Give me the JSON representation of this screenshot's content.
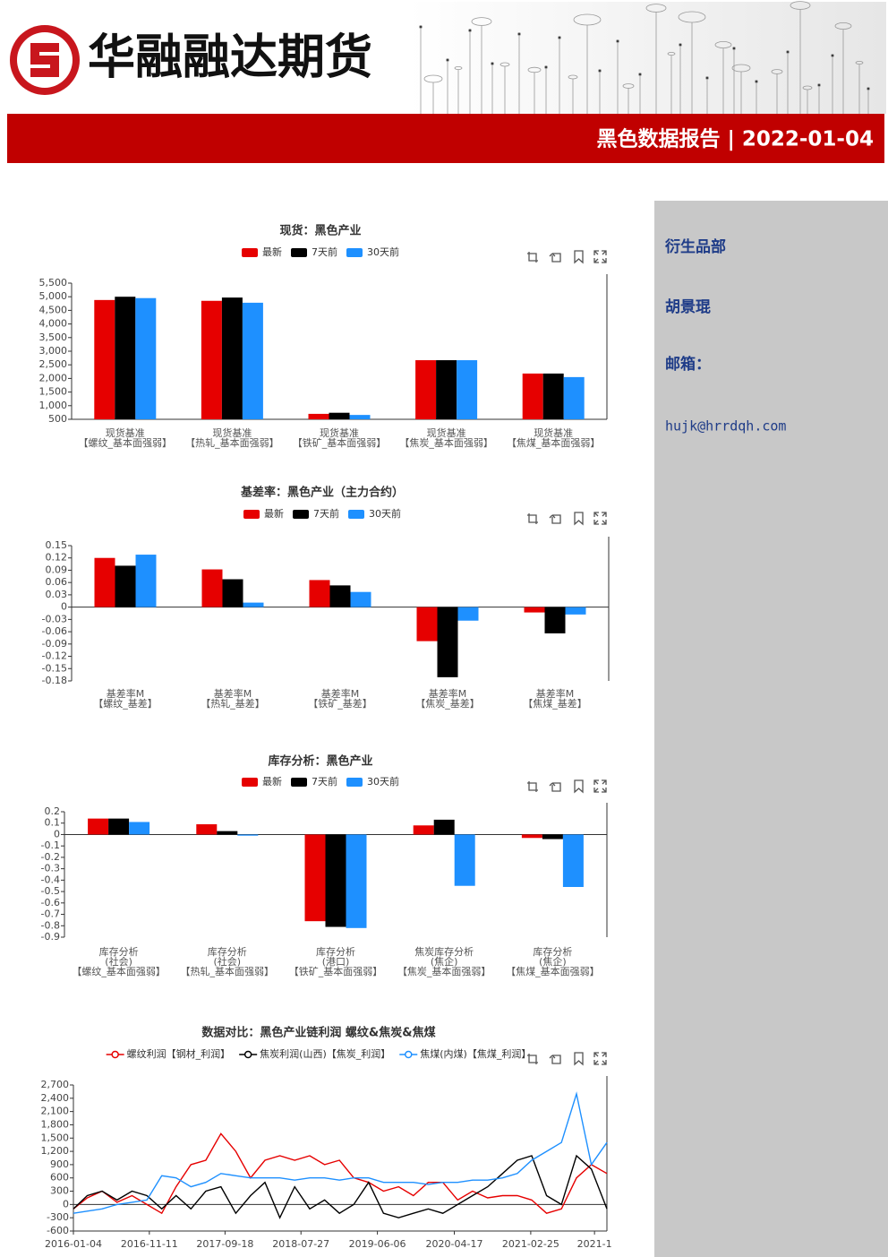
{
  "header": {
    "company": "华融融达期货",
    "report": "黑色数据报告 | 2022-01-04"
  },
  "sidebar": {
    "department": "衍生品部",
    "author": "胡景琨",
    "email_label": "邮箱：",
    "email": "hujk@hrrdqh.com"
  },
  "chart_data": [
    {
      "type": "bar",
      "title": "现货：黑色产业",
      "categories": [
        [
          "现货基准",
          "【螺纹_基本面强弱】"
        ],
        [
          "现货基准",
          "【热轧_基本面强弱】"
        ],
        [
          "现货基准",
          "【铁矿_基本面强弱】"
        ],
        [
          "现货基准",
          "【焦炭_基本面强弱】"
        ],
        [
          "现货基准",
          "【焦煤_基本面强弱】"
        ]
      ],
      "series": [
        {
          "name": "最新",
          "color": "#e60000",
          "values": [
            4880,
            4850,
            700,
            2670,
            2180
          ]
        },
        {
          "name": "7天前",
          "color": "#000000",
          "values": [
            5000,
            4970,
            740,
            2670,
            2180
          ]
        },
        {
          "name": "30天前",
          "color": "#1e90ff",
          "values": [
            4950,
            4780,
            660,
            2670,
            2050
          ]
        }
      ],
      "ylim": [
        500,
        5500
      ],
      "yticks": [
        500,
        {
          "value": 1000,
          "label": "1,000"
        },
        {
          "value": 1500,
          "label": "1,500"
        },
        {
          "value": 2000,
          "label": "2,000"
        },
        {
          "value": 2500,
          "label": "2,500"
        },
        {
          "value": 3000,
          "label": "3,000"
        },
        {
          "value": 3500,
          "label": "3,500"
        },
        {
          "value": 4000,
          "label": "4,000"
        },
        {
          "value": 4500,
          "label": "4,500"
        },
        {
          "value": 5000,
          "label": "5,000"
        },
        {
          "value": 5500,
          "label": "5,500"
        }
      ]
    },
    {
      "type": "bar",
      "title": "基差率：黑色产业（主力合约）",
      "categories": [
        [
          "基差率M",
          "【螺纹_基差】"
        ],
        [
          "基差率M",
          "【热轧_基差】"
        ],
        [
          "基差率M",
          "【铁矿_基差】"
        ],
        [
          "基差率M",
          "【焦炭_基差】"
        ],
        [
          "基差率M",
          "【焦煤_基差】"
        ]
      ],
      "series": [
        {
          "name": "最新",
          "color": "#e60000",
          "values": [
            0.12,
            0.092,
            0.066,
            -0.083,
            -0.013
          ]
        },
        {
          "name": "7天前",
          "color": "#000000",
          "values": [
            0.101,
            0.068,
            0.053,
            -0.171,
            -0.064
          ]
        },
        {
          "name": "30天前",
          "color": "#1e90ff",
          "values": [
            0.128,
            0.011,
            0.037,
            -0.033,
            -0.018
          ]
        }
      ],
      "ylim": [
        -0.18,
        0.15
      ],
      "yticks": [
        0.15,
        0.12,
        0.09,
        0.06,
        0.03,
        0,
        -0.03,
        -0.06,
        -0.09,
        -0.12,
        -0.15,
        -0.18
      ]
    },
    {
      "type": "bar",
      "title": "库存分析：黑色产业",
      "categories": [
        [
          "库存分析",
          "(社会)",
          "【螺纹_基本面强弱】"
        ],
        [
          "库存分析",
          "(社会)",
          "【热轧_基本面强弱】"
        ],
        [
          "库存分析",
          "(港口)",
          "【铁矿_基本面强弱】"
        ],
        [
          "焦炭库存分析",
          "(焦企)",
          "【焦炭_基本面强弱】"
        ],
        [
          "库存分析",
          "(焦企)",
          "【焦煤_基本面强弱】"
        ]
      ],
      "series": [
        {
          "name": "最新",
          "color": "#e60000",
          "values": [
            0.14,
            0.09,
            -0.76,
            0.08,
            -0.03
          ]
        },
        {
          "name": "7天前",
          "color": "#000000",
          "values": [
            0.14,
            0.03,
            -0.81,
            0.13,
            -0.04
          ]
        },
        {
          "name": "30天前",
          "color": "#1e90ff",
          "values": [
            0.11,
            -0.01,
            -0.82,
            -0.45,
            -0.46
          ]
        }
      ],
      "ylim": [
        -0.9,
        0.2
      ],
      "yticks": [
        0.2,
        0.1,
        0,
        -0.1,
        -0.2,
        -0.3,
        -0.4,
        -0.5,
        -0.6,
        -0.7,
        -0.8,
        -0.9
      ]
    },
    {
      "type": "line",
      "title": "数据对比：黑色产业链利润 螺纹&焦炭&焦煤",
      "x": [
        "2016-01-04",
        "2016-03-01",
        "2016-05-01",
        "2016-07-01",
        "2016-09-01",
        "2016-11-01",
        "2017-01-01",
        "2017-03-01",
        "2017-05-01",
        "2017-07-01",
        "2017-09-01",
        "2017-11-01",
        "2018-01-01",
        "2018-03-01",
        "2018-05-01",
        "2018-07-01",
        "2018-09-01",
        "2018-11-01",
        "2019-01-01",
        "2019-03-01",
        "2019-05-01",
        "2019-07-01",
        "2019-09-01",
        "2019-11-01",
        "2020-01-01",
        "2020-03-01",
        "2020-05-01",
        "2020-07-01",
        "2020-09-01",
        "2020-11-01",
        "2021-01-01",
        "2021-03-01",
        "2021-05-01",
        "2021-07-01",
        "2021-09-01",
        "2021-11-01",
        "2022-01-04"
      ],
      "series": [
        {
          "name": "螺纹利润【钢材_利润】",
          "color": "#e60000",
          "values": [
            -100,
            150,
            300,
            50,
            200,
            0,
            -200,
            400,
            900,
            1000,
            1600,
            1200,
            600,
            1000,
            1100,
            1000,
            1100,
            900,
            1000,
            600,
            500,
            300,
            400,
            200,
            500,
            500,
            100,
            300,
            150,
            200,
            200,
            100,
            -200,
            -100,
            600,
            900,
            700
          ]
        },
        {
          "name": "焦炭利润(山西)【焦炭_利润】",
          "color": "#000000",
          "values": [
            -100,
            200,
            300,
            100,
            300,
            200,
            -100,
            200,
            -100,
            300,
            400,
            -200,
            200,
            500,
            -300,
            400,
            -100,
            100,
            -200,
            0,
            500,
            -200,
            -300,
            -200,
            -100,
            -200,
            0,
            200,
            400,
            700,
            1000,
            1100,
            200,
            0,
            1100,
            800,
            -100
          ]
        },
        {
          "name": "焦煤(内煤)【焦煤_利润】",
          "color": "#1e90ff",
          "values": [
            -200,
            -150,
            -100,
            0,
            50,
            100,
            650,
            600,
            400,
            500,
            700,
            650,
            600,
            600,
            600,
            550,
            600,
            600,
            550,
            600,
            600,
            500,
            500,
            500,
            450,
            500,
            500,
            550,
            550,
            600,
            700,
            1000,
            1200,
            1400,
            2500,
            900,
            1400
          ]
        }
      ],
      "xlim": [
        "2016-01-04",
        "2022-01-04"
      ],
      "xticks": [
        "2016-01-04",
        "2016-11-11",
        "2017-09-18",
        "2018-07-27",
        "2019-06-06",
        "2020-04-17",
        "2021-02-25",
        {
          "value": "2021-11-14",
          "label": "2021-1"
        }
      ],
      "ylim": [
        -600,
        2700
      ],
      "yticks": [
        -600,
        -300,
        0,
        300,
        600,
        900,
        {
          "value": 1200,
          "label": "1,200"
        },
        {
          "value": 1500,
          "label": "1,500"
        },
        {
          "value": 1800,
          "label": "1,800"
        },
        {
          "value": 2100,
          "label": "2,100"
        },
        {
          "value": 2400,
          "label": "2,400"
        },
        {
          "value": 2700,
          "label": "2,700"
        }
      ]
    }
  ]
}
